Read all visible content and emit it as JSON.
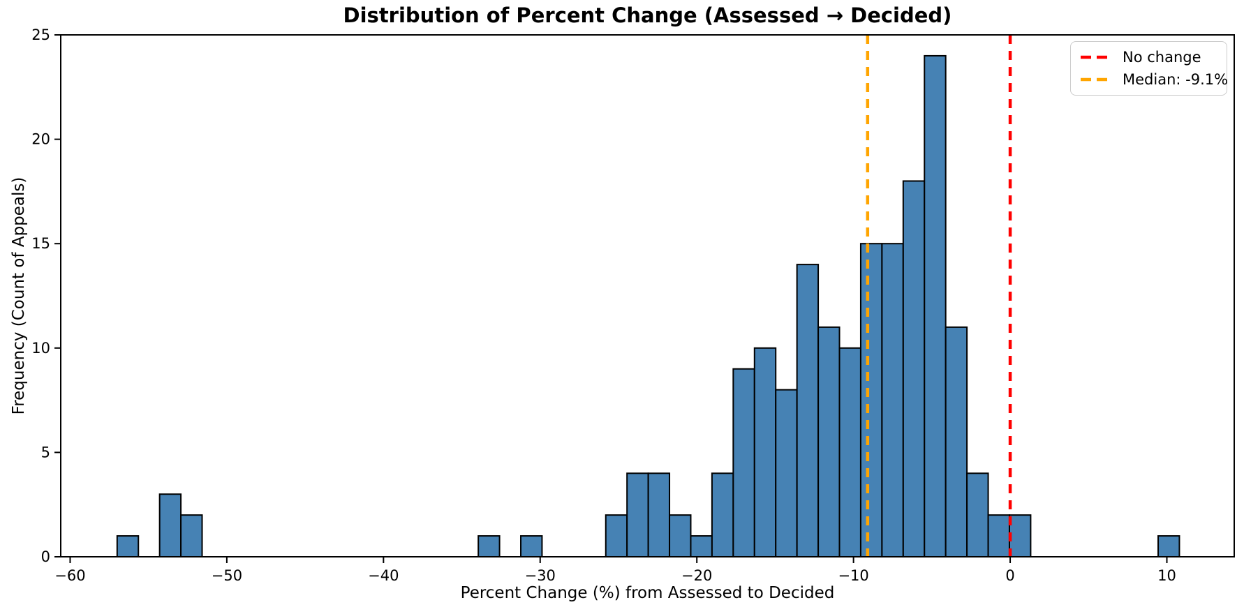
{
  "title": "Distribution of Percent Change (Assessed → Decided)",
  "xlabel": "Percent Change (%) from Assessed to Decided",
  "ylabel": "Frequency (Count of Appeals)",
  "legend": {
    "items": [
      {
        "label": "No change",
        "color": "#ff0000",
        "linestyle": "dashed"
      },
      {
        "label": "Median: -9.1%",
        "color": "#ffa500",
        "linestyle": "dashed"
      }
    ],
    "position": "upper right"
  },
  "chart_data": {
    "type": "bar",
    "subtype": "histogram",
    "title": "Distribution of Percent Change (Assessed → Decided)",
    "xlabel": "Percent Change (%) from Assessed to Decided",
    "ylabel": "Frequency (Count of Appeals)",
    "bin_start": -57.0,
    "bin_width": 1.356,
    "counts": [
      1,
      0,
      3,
      2,
      0,
      0,
      0,
      0,
      0,
      0,
      0,
      0,
      0,
      0,
      0,
      0,
      0,
      1,
      0,
      1,
      0,
      0,
      0,
      2,
      4,
      4,
      2,
      1,
      4,
      9,
      10,
      8,
      14,
      11,
      10,
      15,
      15,
      18,
      24,
      11,
      4,
      2,
      2,
      0,
      0,
      0,
      0,
      0,
      0,
      1
    ],
    "xlim": [
      -60.6,
      14.3
    ],
    "ylim": [
      0,
      25
    ],
    "xticks": [
      -60,
      -50,
      -40,
      -30,
      -20,
      -10,
      0,
      10
    ],
    "xtick_labels": [
      "−60",
      "−50",
      "−40",
      "−30",
      "−20",
      "−10",
      "0",
      "10"
    ],
    "yticks": [
      0,
      5,
      10,
      15,
      20,
      25
    ],
    "ytick_labels": [
      "0",
      "5",
      "10",
      "15",
      "20",
      "25"
    ],
    "grid": false,
    "legend_position": "upper right",
    "bar_color": "#4682B4",
    "bar_edge_color": "#000000",
    "annotations": [
      {
        "type": "vline",
        "x": 0,
        "label": "No change",
        "color": "#ff0000",
        "linestyle": "dashed"
      },
      {
        "type": "vline",
        "x": -9.1,
        "label": "Median: -9.1%",
        "color": "#ffa500",
        "linestyle": "dashed"
      }
    ]
  }
}
